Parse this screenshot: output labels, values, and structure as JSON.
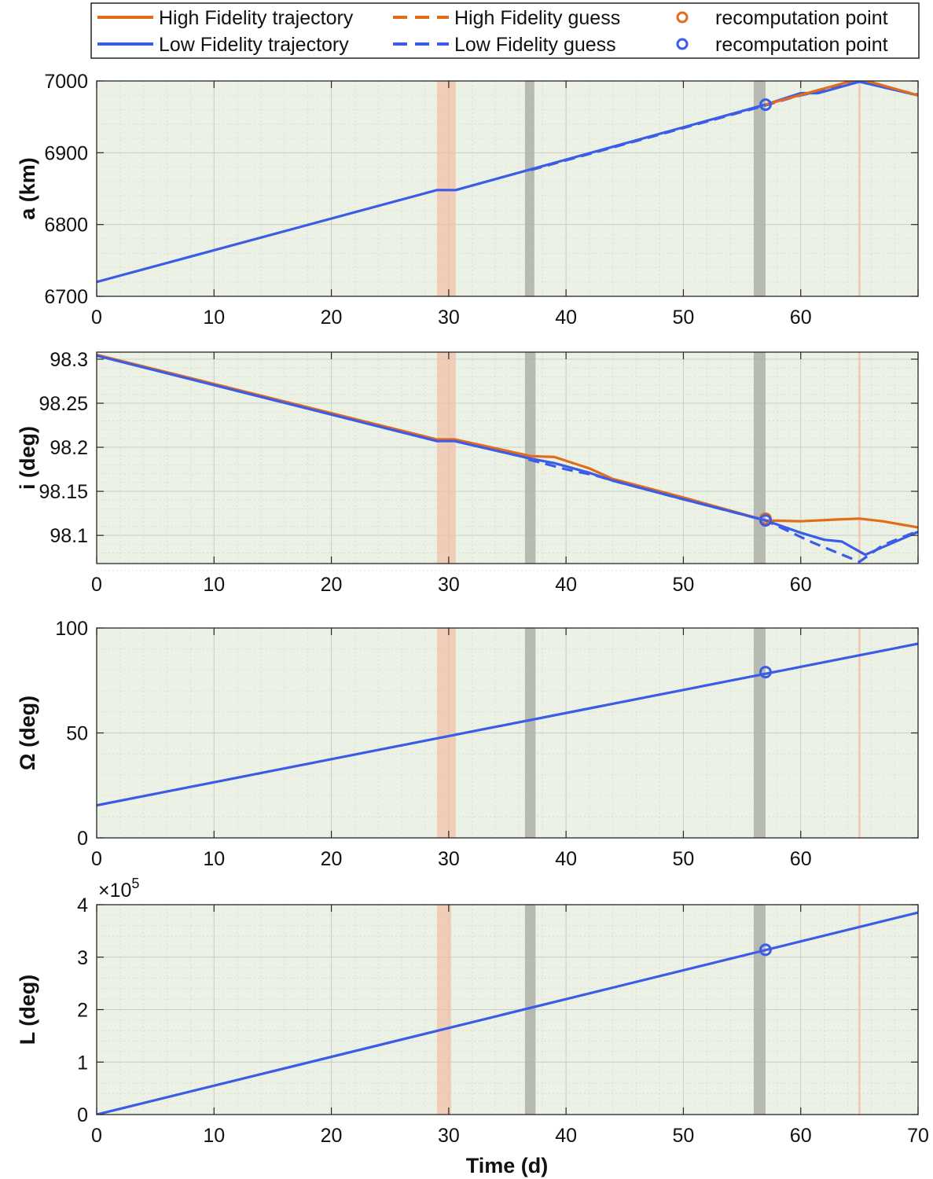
{
  "legend": {
    "entries": [
      {
        "label": "High Fidelity trajectory",
        "color": "#e36c1b",
        "style": "solid"
      },
      {
        "label": "High Fidelity guess",
        "color": "#e36c1b",
        "style": "dashed"
      },
      {
        "label": "recomputation point",
        "color": "#e36c1b",
        "style": "circle"
      },
      {
        "label": "Low Fidelity trajectory",
        "color": "#3b5ce6",
        "style": "solid"
      },
      {
        "label": "Low Fidelity guess",
        "color": "#3b5ce6",
        "style": "dashed"
      },
      {
        "label": "recomputation point",
        "color": "#3b5ce6",
        "style": "circle"
      }
    ]
  },
  "colors": {
    "high": "#e36c1b",
    "low": "#3b5ce6",
    "background": "#ebf1e5",
    "band_orange": "#f0c0a8",
    "band_gray": "#a9aca3"
  },
  "xlabel": "Time (d)",
  "recomputation_time": 57,
  "chart_data": [
    {
      "type": "line",
      "ylabel": "a (km)",
      "xlim": [
        0,
        70
      ],
      "ylim": [
        6700,
        7000
      ],
      "x_ticks": [
        "0",
        "10",
        "20",
        "30",
        "40",
        "50",
        "60"
      ],
      "y_ticks": [
        "6700",
        "6800",
        "6900",
        "7000"
      ],
      "multiplier": "",
      "bands": [
        {
          "x0": 29,
          "x1": 30.6,
          "kind": "orange"
        },
        {
          "x0": 36.5,
          "x1": 37.3,
          "kind": "gray"
        },
        {
          "x0": 56,
          "x1": 57,
          "kind": "gray"
        },
        {
          "x0": 64.9,
          "x1": 65.1,
          "kind": "orange"
        }
      ],
      "series": [
        {
          "name": "Low Fidelity trajectory",
          "style": "solid",
          "color": "low",
          "points": [
            [
              0,
              6720
            ],
            [
              29,
              6848
            ],
            [
              30.6,
              6848
            ],
            [
              57,
              6967
            ],
            [
              60,
              6983
            ],
            [
              61.5,
              6983
            ],
            [
              65,
              6999
            ],
            [
              70,
              6980
            ]
          ]
        },
        {
          "name": "Low Fidelity guess",
          "style": "dashed",
          "color": "low",
          "points": [
            [
              37,
              6876
            ],
            [
              57,
              6966
            ],
            [
              59.5,
              6978
            ],
            [
              65,
              6999
            ],
            [
              70,
              6981
            ]
          ]
        },
        {
          "name": "High Fidelity trajectory",
          "style": "solid",
          "color": "high",
          "points": [
            [
              57,
              6967
            ],
            [
              65,
              7003
            ],
            [
              70,
              6980
            ]
          ]
        }
      ],
      "markers": [
        {
          "x": 57,
          "y": 6967,
          "color": "low"
        }
      ]
    },
    {
      "type": "line",
      "ylabel": "i (deg)",
      "xlim": [
        0,
        70
      ],
      "ylim": [
        98.068,
        98.308
      ],
      "x_ticks": [
        "0",
        "10",
        "20",
        "30",
        "40",
        "50",
        "60"
      ],
      "y_ticks": [
        "98.1",
        "98.15",
        "98.2",
        "98.25",
        "98.3"
      ],
      "multiplier": "",
      "bands": [
        {
          "x0": 29,
          "x1": 30.6,
          "kind": "orange"
        },
        {
          "x0": 36.5,
          "x1": 37.4,
          "kind": "gray"
        },
        {
          "x0": 56,
          "x1": 57,
          "kind": "gray"
        },
        {
          "x0": 64.9,
          "x1": 65.1,
          "kind": "orange"
        }
      ],
      "series": [
        {
          "name": "High Fidelity trajectory",
          "style": "solid",
          "color": "high",
          "points": [
            [
              0,
              98.305
            ],
            [
              29,
              98.209
            ],
            [
              30.5,
              98.209
            ],
            [
              37,
              98.19
            ],
            [
              39,
              98.189
            ],
            [
              42,
              98.176
            ],
            [
              44,
              98.164
            ],
            [
              50,
              98.143
            ],
            [
              57,
              98.117
            ],
            [
              60,
              98.116
            ],
            [
              63,
              98.118
            ],
            [
              65,
              98.119
            ],
            [
              67,
              98.116
            ],
            [
              70,
              98.109
            ]
          ]
        },
        {
          "name": "Low Fidelity trajectory",
          "style": "solid",
          "color": "low",
          "points": [
            [
              0,
              98.304
            ],
            [
              29,
              98.207
            ],
            [
              30.5,
              98.207
            ],
            [
              37,
              98.187
            ],
            [
              39,
              98.182
            ],
            [
              42,
              98.171
            ],
            [
              44,
              98.162
            ],
            [
              50,
              98.141
            ],
            [
              57,
              98.117
            ],
            [
              60,
              98.103
            ],
            [
              62,
              98.095
            ],
            [
              63.5,
              98.093
            ],
            [
              65.5,
              98.078
            ],
            [
              70,
              98.104
            ]
          ]
        },
        {
          "name": "Low Fidelity guess",
          "style": "dashed",
          "color": "low",
          "points": [
            [
              36.8,
              98.186
            ],
            [
              38,
              98.182
            ],
            [
              40,
              98.175
            ],
            [
              42.5,
              98.168
            ],
            [
              44,
              98.162
            ],
            [
              50,
              98.141
            ],
            [
              57,
              98.117
            ],
            [
              61,
              98.092
            ],
            [
              65,
              98.07
            ],
            [
              67,
              98.089
            ],
            [
              70,
              98.105
            ]
          ]
        }
      ],
      "markers": [
        {
          "x": 57,
          "y": 98.119,
          "color": "high"
        },
        {
          "x": 57,
          "y": 98.117,
          "color": "low"
        }
      ]
    },
    {
      "type": "line",
      "ylabel": "Ω (deg)",
      "xlim": [
        0,
        70
      ],
      "ylim": [
        0,
        100
      ],
      "x_ticks": [
        "0",
        "10",
        "20",
        "30",
        "40",
        "50",
        "60"
      ],
      "y_ticks": [
        "0",
        "50",
        "100"
      ],
      "multiplier": "",
      "bands": [
        {
          "x0": 29,
          "x1": 30.6,
          "kind": "orange"
        },
        {
          "x0": 36.5,
          "x1": 37.4,
          "kind": "gray"
        },
        {
          "x0": 56,
          "x1": 57,
          "kind": "gray"
        },
        {
          "x0": 64.9,
          "x1": 65.1,
          "kind": "orange"
        }
      ],
      "series": [
        {
          "name": "Low Fidelity trajectory",
          "style": "solid",
          "color": "low",
          "points": [
            [
              0,
              15.5
            ],
            [
              70,
              92.5
            ]
          ]
        }
      ],
      "markers": [
        {
          "x": 57,
          "y": 79,
          "color": "low"
        }
      ]
    },
    {
      "type": "line",
      "ylabel": "L (deg)",
      "xlim": [
        0,
        70
      ],
      "ylim": [
        0,
        400000
      ],
      "x_ticks": [
        "0",
        "10",
        "20",
        "30",
        "40",
        "50",
        "60",
        "70"
      ],
      "y_ticks": [
        "0",
        "1",
        "2",
        "3",
        "4"
      ],
      "multiplier": "×10",
      "multiplier_exp": "5",
      "bands": [
        {
          "x0": 29,
          "x1": 30.2,
          "kind": "orange"
        },
        {
          "x0": 36.5,
          "x1": 37.4,
          "kind": "gray"
        },
        {
          "x0": 56,
          "x1": 57,
          "kind": "gray"
        },
        {
          "x0": 64.9,
          "x1": 65.1,
          "kind": "orange"
        }
      ],
      "series": [
        {
          "name": "Low Fidelity trajectory",
          "style": "solid",
          "color": "low",
          "points": [
            [
              0,
              0
            ],
            [
              70,
              385000
            ]
          ]
        }
      ],
      "markers": [
        {
          "x": 57,
          "y": 314000,
          "color": "low"
        }
      ]
    }
  ]
}
